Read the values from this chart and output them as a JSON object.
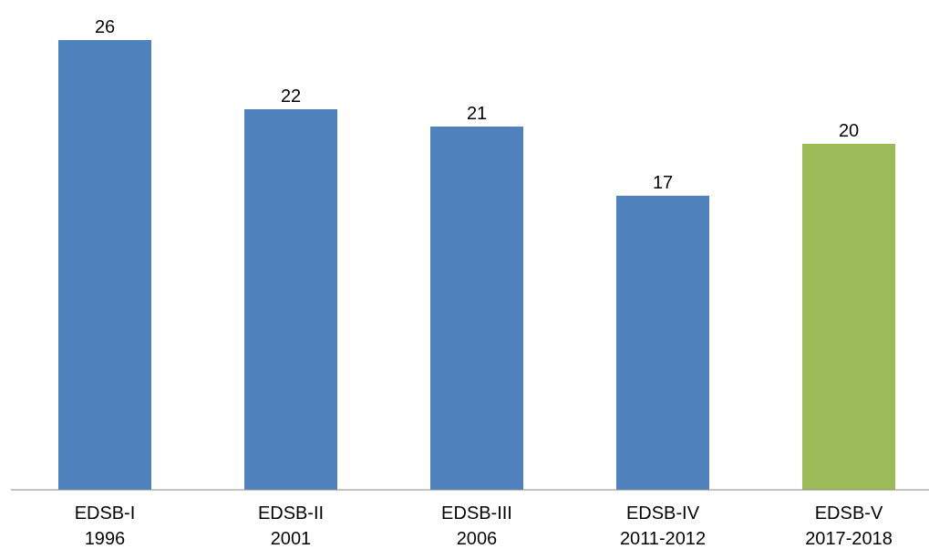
{
  "chart_data": {
    "type": "bar",
    "categories": [
      "EDSB-I\n1996",
      "EDSB-II\n2001",
      "EDSB-III\n2006",
      "EDSB-IV\n2011-2012",
      "EDSB-V\n2017-2018"
    ],
    "values": [
      26,
      22,
      21,
      17,
      20
    ],
    "colors": [
      "#4f81bd",
      "#4f81bd",
      "#4f81bd",
      "#4f81bd",
      "#9bbb59"
    ],
    "data_labels": true
  }
}
